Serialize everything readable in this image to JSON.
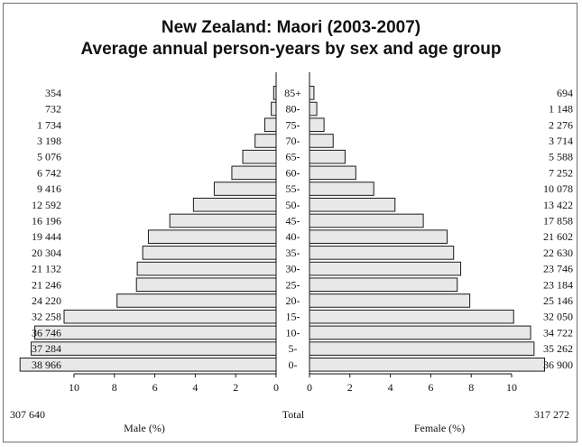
{
  "chart_data": {
    "type": "population-pyramid",
    "title": "New Zealand: Maori (2003-2007)",
    "subtitle": "Average annual person-years by sex and age group",
    "age_groups": [
      "85+",
      "80-",
      "75-",
      "70-",
      "65-",
      "60-",
      "55-",
      "50-",
      "45-",
      "40-",
      "35-",
      "30-",
      "25-",
      "20-",
      "15-",
      "10-",
      "5-",
      "0-"
    ],
    "male": {
      "label": "Male (%)",
      "counts": [
        "354",
        "732",
        "1 734",
        "3 198",
        "5 076",
        "6 742",
        "9 416",
        "12 592",
        "16 196",
        "19 444",
        "20 304",
        "21 132",
        "21 246",
        "24 220",
        "32 258",
        "36 746",
        "37 284",
        "38 966"
      ],
      "percent": [
        0.12,
        0.24,
        0.56,
        1.04,
        1.65,
        2.19,
        3.06,
        4.09,
        5.26,
        6.32,
        6.6,
        6.87,
        6.91,
        7.87,
        10.49,
        11.94,
        12.12,
        12.67
      ],
      "total": "307 640"
    },
    "female": {
      "label": "Female (%)",
      "counts": [
        "694",
        "1 148",
        "2 276",
        "3 714",
        "5 588",
        "7 252",
        "10 078",
        "13 422",
        "17 858",
        "21 602",
        "22 630",
        "23 746",
        "23 184",
        "25 146",
        "32 050",
        "34 722",
        "35 262",
        "36 900"
      ],
      "percent": [
        0.22,
        0.36,
        0.72,
        1.17,
        1.76,
        2.29,
        3.18,
        4.23,
        5.63,
        6.81,
        7.13,
        7.48,
        7.31,
        7.93,
        10.1,
        10.94,
        11.11,
        11.63
      ],
      "total": "317 272"
    },
    "total_label": "Total",
    "x_ticks": [
      10,
      8,
      6,
      4,
      2,
      0
    ],
    "xlim": [
      0,
      10
    ],
    "bar_fill": "#e8e8e8",
    "bar_stroke": "#1a1a1a"
  }
}
